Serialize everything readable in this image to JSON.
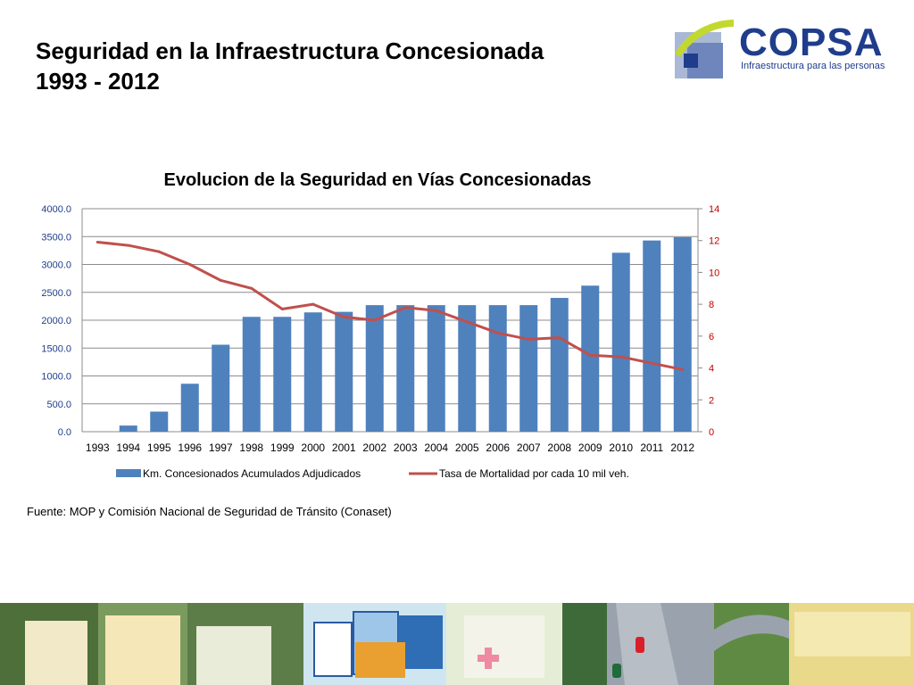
{
  "slide": {
    "title_line1": "Seguridad en la Infraestructura Concesionada",
    "title_line2": "1993 - 2012"
  },
  "logo": {
    "name": "COPSA",
    "tagline": "Infraestructura para las personas"
  },
  "source_note": "Fuente: MOP y Comisión Nacional de Seguridad de Tránsito (Conaset)",
  "colors": {
    "bar": "#4f81bd",
    "line": "#c0504d",
    "right_axis": "#c00000",
    "logo_blue": "#1f3d8c",
    "logo_green": "#c3d82f"
  },
  "chart_data": {
    "type": "bar",
    "title": "Evolucion de la Seguridad en Vías Concesionadas",
    "categories": [
      "1993",
      "1994",
      "1995",
      "1996",
      "1997",
      "1998",
      "1999",
      "2000",
      "2001",
      "2002",
      "2003",
      "2004",
      "2005",
      "2006",
      "2007",
      "2008",
      "2009",
      "2010",
      "2011",
      "2012"
    ],
    "series": [
      {
        "name": "Km. Concesionados Acumulados Adjudicados",
        "type": "bar",
        "axis": "left",
        "values": [
          0,
          110,
          360,
          860,
          1560,
          2060,
          2060,
          2140,
          2150,
          2270,
          2270,
          2270,
          2270,
          2270,
          2270,
          2400,
          2620,
          3210,
          3430,
          3490
        ]
      },
      {
        "name": "Tasa de Mortalidad por cada 10 mil veh.",
        "type": "line",
        "axis": "right",
        "values": [
          11.9,
          11.7,
          11.3,
          10.5,
          9.5,
          9.0,
          7.7,
          8.0,
          7.2,
          7.0,
          7.8,
          7.6,
          6.9,
          6.2,
          5.8,
          5.9,
          4.8,
          4.7,
          4.3,
          3.9
        ]
      }
    ],
    "y_left": {
      "ylim": [
        0,
        4000
      ],
      "ticks": [
        "0.0",
        "500.0",
        "1000.0",
        "1500.0",
        "2000.0",
        "2500.0",
        "3000.0",
        "3500.0",
        "4000.0"
      ]
    },
    "y_right": {
      "ylim": [
        0,
        14
      ],
      "ticks": [
        "0",
        "2",
        "4",
        "6",
        "8",
        "10",
        "12",
        "14"
      ]
    },
    "grid": true,
    "legend": "bottom"
  }
}
